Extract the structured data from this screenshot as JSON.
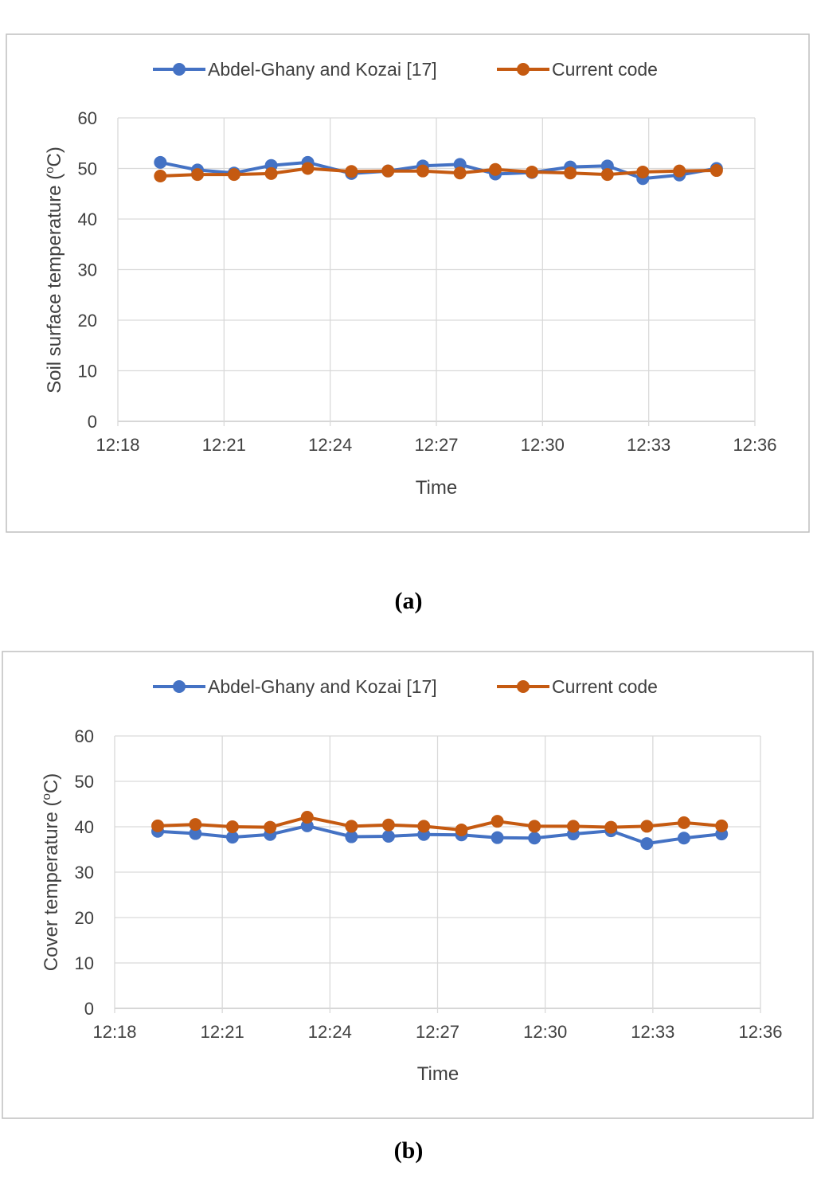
{
  "colors": {
    "blue": "#4472c4",
    "orange": "#c55a11",
    "grid": "#d9d9d9",
    "axis": "#bfbfbf",
    "text": "#404040",
    "frame": "#bfbfbf"
  },
  "chart_data": [
    {
      "type": "line",
      "caption": "(a)",
      "xlabel": "Time",
      "ylabel": "Soil surface temperature (oC)",
      "ylim": [
        0,
        60
      ],
      "yticks": [
        "0",
        "10",
        "20",
        "30",
        "40",
        "50",
        "60"
      ],
      "xlim": [
        "12:18",
        "12:36"
      ],
      "xticks": [
        "12:18",
        "12:21",
        "12:24",
        "12:27",
        "12:30",
        "12:33",
        "12:36"
      ],
      "grid": true,
      "legend": "top",
      "x": [
        "12:19:12",
        "12:20:15",
        "12:21:17",
        "12:22:20",
        "12:23:22",
        "12:24:36",
        "12:25:38",
        "12:26:37",
        "12:27:40",
        "12:28:40",
        "12:29:42",
        "12:30:47",
        "12:31:50",
        "12:32:50",
        "12:33:52",
        "12:34:55"
      ],
      "series": [
        {
          "name": "Abdel-Ghany and Kozai [17]",
          "color": "#4472c4",
          "values": [
            51.2,
            49.7,
            49.1,
            50.6,
            51.2,
            49.0,
            49.5,
            50.5,
            50.8,
            48.9,
            49.2,
            50.3,
            50.5,
            48.0,
            48.7,
            50.0
          ]
        },
        {
          "name": "Current code",
          "color": "#c55a11",
          "values": [
            48.5,
            48.8,
            48.8,
            49.0,
            50.0,
            49.4,
            49.5,
            49.5,
            49.1,
            49.8,
            49.3,
            49.1,
            48.8,
            49.3,
            49.5,
            49.6
          ]
        }
      ]
    },
    {
      "type": "line",
      "caption": "(b)",
      "xlabel": "Time",
      "ylabel": "Cover temperature (oC)",
      "ylim": [
        0,
        60
      ],
      "yticks": [
        "0",
        "10",
        "20",
        "30",
        "40",
        "50",
        "60"
      ],
      "xlim": [
        "12:18",
        "12:36"
      ],
      "xticks": [
        "12:18",
        "12:21",
        "12:24",
        "12:27",
        "12:30",
        "12:33",
        "12:36"
      ],
      "grid": true,
      "legend": "top",
      "x": [
        "12:19:12",
        "12:20:15",
        "12:21:17",
        "12:22:20",
        "12:23:22",
        "12:24:36",
        "12:25:38",
        "12:26:37",
        "12:27:40",
        "12:28:40",
        "12:29:42",
        "12:30:47",
        "12:31:50",
        "12:32:50",
        "12:33:52",
        "12:34:55"
      ],
      "series": [
        {
          "name": "Abdel-Ghany and Kozai [17]",
          "color": "#4472c4",
          "values": [
            39.0,
            38.5,
            37.7,
            38.3,
            40.2,
            37.8,
            37.9,
            38.3,
            38.2,
            37.6,
            37.5,
            38.4,
            39.1,
            36.3,
            37.5,
            38.4
          ]
        },
        {
          "name": "Current code",
          "color": "#c55a11",
          "values": [
            40.2,
            40.5,
            40.0,
            39.9,
            42.1,
            40.1,
            40.4,
            40.1,
            39.3,
            41.2,
            40.1,
            40.1,
            39.9,
            40.1,
            40.9,
            40.2
          ]
        }
      ]
    }
  ]
}
